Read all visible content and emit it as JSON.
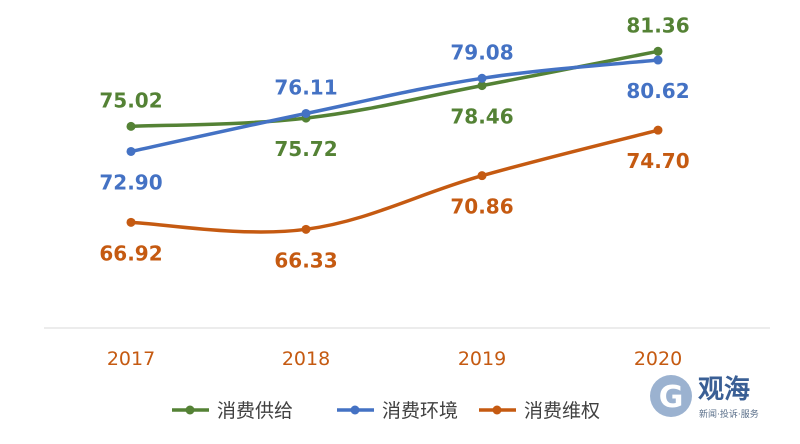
{
  "chart_data": {
    "type": "line",
    "title": "",
    "xlabel": "",
    "ylabel": "",
    "categories": [
      "2017",
      "2018",
      "2019",
      "2020"
    ],
    "ylim": [
      58,
      84
    ],
    "grid": false,
    "legend_position": "bottom",
    "tick_color": "#c55a11",
    "series": [
      {
        "name": "消费供给",
        "color": "#548235",
        "values": [
          75.02,
          75.72,
          78.46,
          81.36
        ],
        "labels": [
          "75.02",
          "75.72",
          "78.46",
          "81.36"
        ],
        "label_sides": [
          "above",
          "below",
          "below",
          "above"
        ]
      },
      {
        "name": "消费环境",
        "color": "#4472c4",
        "values": [
          72.9,
          76.11,
          79.08,
          80.62
        ],
        "labels": [
          "72.90",
          "76.11",
          "79.08",
          "80.62"
        ],
        "label_sides": [
          "below",
          "above",
          "above",
          "below"
        ]
      },
      {
        "name": "消费维权",
        "color": "#c55a11",
        "values": [
          66.92,
          66.33,
          70.86,
          74.7
        ],
        "labels": [
          "66.92",
          "66.33",
          "70.86",
          "74.70"
        ],
        "label_sides": [
          "below",
          "below",
          "below",
          "below"
        ]
      }
    ]
  },
  "watermark": {
    "logo_text": "观海",
    "tagline": "新闻·投诉·服务"
  }
}
